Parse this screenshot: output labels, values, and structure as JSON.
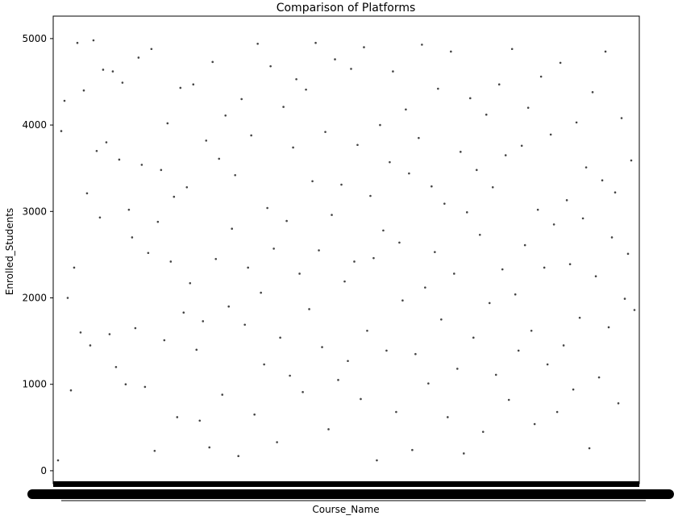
{
  "chart_data": {
    "type": "scatter",
    "title": "Comparison of Platforms",
    "xlabel": "Course_Name",
    "ylabel": "Enrolled_Students",
    "ylim": [
      -150,
      5260
    ],
    "yticks": [
      0,
      1000,
      2000,
      3000,
      4000,
      5000
    ],
    "grid": false,
    "legend": "none",
    "x_tick_labels_overlapping": true,
    "marker_color": "#444444",
    "x": [
      1,
      2,
      3,
      4,
      5,
      6,
      7,
      8,
      9,
      10,
      11,
      12,
      13,
      14,
      15,
      16,
      17,
      18,
      19,
      20,
      21,
      22,
      23,
      24,
      25,
      26,
      27,
      28,
      29,
      30,
      31,
      32,
      33,
      34,
      35,
      36,
      37,
      38,
      39,
      40,
      41,
      42,
      43,
      44,
      45,
      46,
      47,
      48,
      49,
      50,
      51,
      52,
      53,
      54,
      55,
      56,
      57,
      58,
      59,
      60,
      61,
      62,
      63,
      64,
      65,
      66,
      67,
      68,
      69,
      70,
      71,
      72,
      73,
      74,
      75,
      76,
      77,
      78,
      79,
      80,
      81,
      82,
      83,
      84,
      85,
      86,
      87,
      88,
      89,
      90,
      91,
      92,
      93,
      94,
      95,
      96,
      97,
      98,
      99,
      100,
      101,
      102,
      103,
      104,
      105,
      106,
      107,
      108,
      109,
      110,
      111,
      112,
      113,
      114,
      115,
      116,
      117,
      118,
      119,
      120,
      121,
      122,
      123,
      124,
      125,
      126,
      127,
      128,
      129,
      130,
      131,
      132,
      133,
      134,
      135,
      136,
      137,
      138,
      139,
      140,
      141,
      142,
      143,
      144,
      145,
      146,
      147,
      148,
      149,
      150,
      151,
      152,
      153,
      154,
      155,
      156,
      157,
      158,
      159,
      160,
      161,
      162,
      163,
      164,
      165,
      166,
      167,
      168,
      169,
      170,
      171,
      172,
      173,
      174,
      175,
      176,
      177,
      178,
      179,
      180
    ],
    "y": [
      120,
      3930,
      4280,
      2000,
      930,
      2350,
      4950,
      1600,
      4400,
      3210,
      1450,
      4980,
      3700,
      2930,
      4640,
      3800,
      1580,
      4620,
      1200,
      3600,
      4490,
      1000,
      3020,
      2700,
      1650,
      4780,
      3540,
      970,
      2520,
      4880,
      230,
      2880,
      3480,
      1510,
      4020,
      2420,
      3170,
      620,
      4430,
      1830,
      3280,
      2170,
      4470,
      1400,
      580,
      1730,
      3820,
      270,
      4730,
      2450,
      3610,
      880,
      4110,
      1900,
      2800,
      3420,
      170,
      4300,
      1690,
      2350,
      3880,
      650,
      4940,
      2060,
      1230,
      3040,
      4680,
      2570,
      330,
      1540,
      4210,
      2890,
      1100,
      3740,
      4530,
      2280,
      910,
      4410,
      1870,
      3350,
      4950,
      2550,
      1430,
      3920,
      480,
      2960,
      4760,
      1050,
      3310,
      2190,
      1270,
      4650,
      2420,
      3770,
      830,
      4900,
      1620,
      3180,
      2460,
      120,
      4000,
      2780,
      1390,
      3570,
      4620,
      680,
      2640,
      1970,
      4180,
      3440,
      240,
      1350,
      3850,
      4930,
      2120,
      1010,
      3290,
      2530,
      4420,
      1750,
      3090,
      620,
      4850,
      2280,
      1180,
      3690,
      200,
      2990,
      4310,
      1540,
      3480,
      2730,
      450,
      4120,
      1940,
      3280,
      1110,
      4470,
      2330,
      3650,
      820,
      4880,
      2040,
      1390,
      3760,
      2610,
      4200,
      1620,
      540,
      3020,
      4560,
      2350,
      1230,
      3890,
      2850,
      680,
      4720,
      1450,
      3130,
      2390,
      940,
      4030,
      1770,
      2920,
      3510,
      260,
      4380,
      2250,
      1080,
      3360,
      4850,
      1660,
      2700,
      3220,
      780,
      4080,
      1990,
      2510,
      3590,
      1860
    ]
  }
}
